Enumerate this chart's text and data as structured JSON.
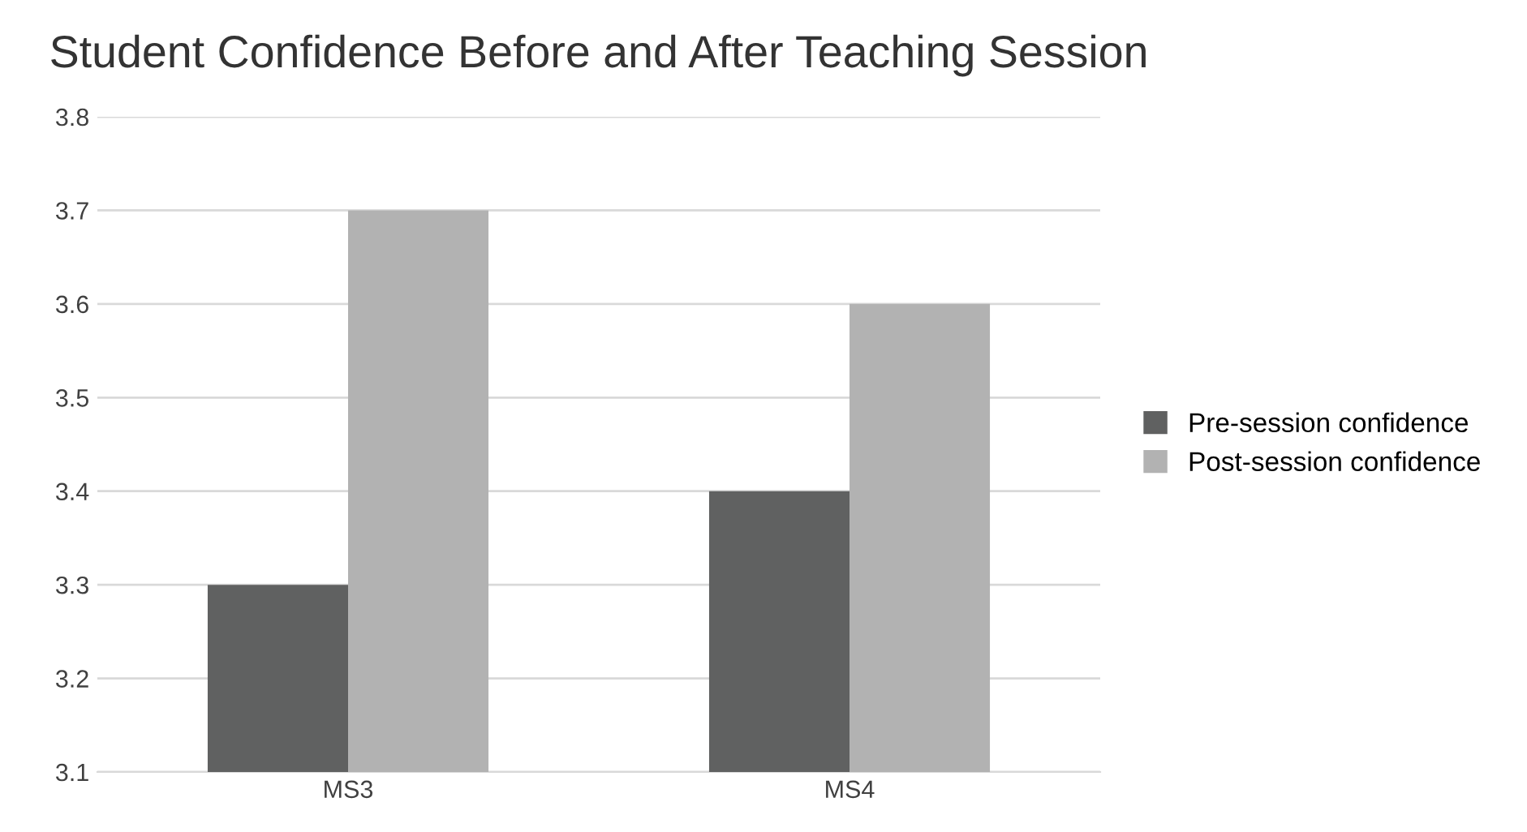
{
  "chart_data": {
    "type": "bar",
    "title": "Student Confidence Before and After Teaching Session",
    "categories": [
      "MS3",
      "MS4"
    ],
    "series": [
      {
        "name": "Pre-session confidence",
        "color": "#606161",
        "values": [
          3.3,
          3.4
        ]
      },
      {
        "name": "Post-session confidence",
        "color": "#b2b2b2",
        "values": [
          3.7,
          3.6
        ]
      }
    ],
    "ylim": [
      3.1,
      3.8
    ],
    "yticks": [
      3.1,
      3.2,
      3.3,
      3.4,
      3.5,
      3.6,
      3.7,
      3.8
    ],
    "grid": "y",
    "legend": "right"
  }
}
